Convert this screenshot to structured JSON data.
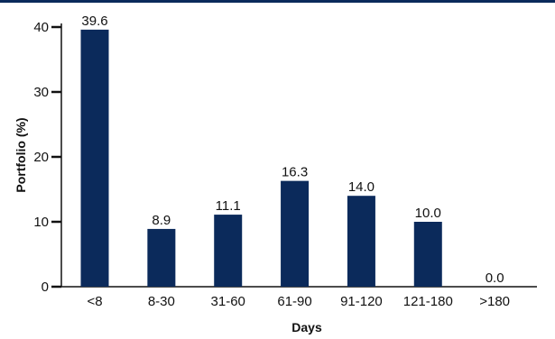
{
  "chart_data": {
    "type": "bar",
    "title": "",
    "xlabel": "Days",
    "ylabel": "Portfolio (%)",
    "categories": [
      "<8",
      "8-30",
      "31-60",
      "61-90",
      "91-120",
      "121-180",
      ">180"
    ],
    "values": [
      39.6,
      8.9,
      11.1,
      16.3,
      14.0,
      10.0,
      0.0
    ],
    "value_labels": [
      "39.6",
      "8.9",
      "11.1",
      "16.3",
      "14.0",
      "10.0",
      "0.0"
    ],
    "ylim": [
      0,
      40
    ],
    "yticks": [
      0,
      10,
      20,
      30,
      40
    ],
    "ytick_labels": [
      "0",
      "10",
      "20",
      "30",
      "40"
    ],
    "grid": false,
    "legend": "none",
    "bar_color": "#0b2a5b",
    "axis_color": "#111111"
  }
}
